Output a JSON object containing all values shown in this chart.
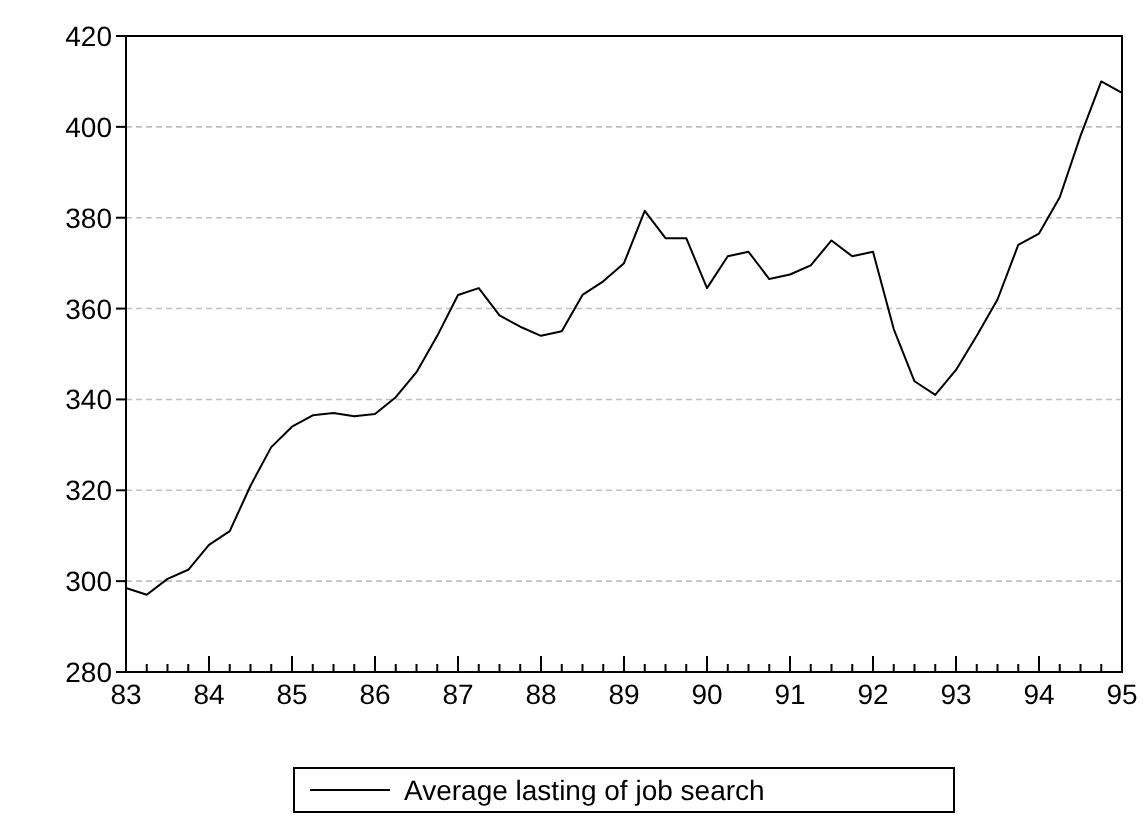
{
  "chart_data": {
    "type": "line",
    "x": [
      83,
      83.25,
      83.5,
      83.75,
      84,
      84.25,
      84.5,
      84.75,
      85,
      85.25,
      85.5,
      85.75,
      86,
      86.25,
      86.5,
      86.75,
      87,
      87.25,
      87.5,
      87.75,
      88,
      88.25,
      88.5,
      88.75,
      89,
      89.25,
      89.5,
      89.75,
      90,
      90.25,
      90.5,
      90.75,
      91,
      91.25,
      91.5,
      91.75,
      92,
      92.25,
      92.5,
      92.75,
      93,
      93.25,
      93.5,
      93.75,
      94,
      94.25,
      94.5,
      94.75,
      95
    ],
    "series": [
      {
        "name": "Average lasting of job search",
        "color": "#000000",
        "values": [
          298.5,
          297,
          300.5,
          302.5,
          308,
          311,
          321,
          329.5,
          334,
          336.5,
          337,
          336.3,
          336.8,
          340.5,
          346,
          354,
          363,
          364.5,
          358.5,
          356,
          354,
          355,
          363,
          366,
          370,
          381.5,
          375.5,
          375.5,
          364.5,
          371.5,
          372.5,
          366.5,
          367.5,
          369.5,
          375,
          371.5,
          372.5,
          355.5,
          344,
          341,
          346.5,
          354,
          362,
          374,
          376.5,
          384.5,
          398,
          410,
          407.5
        ]
      }
    ],
    "xlim": [
      83,
      95
    ],
    "xticks": [
      83,
      84,
      85,
      86,
      87,
      88,
      89,
      90,
      91,
      92,
      93,
      94,
      95
    ],
    "ylim": [
      280,
      420
    ],
    "yticks": [
      280,
      300,
      320,
      340,
      360,
      380,
      400,
      420
    ],
    "grid": "y",
    "legend": "bottom",
    "marker": "none",
    "line_style": "solid"
  }
}
